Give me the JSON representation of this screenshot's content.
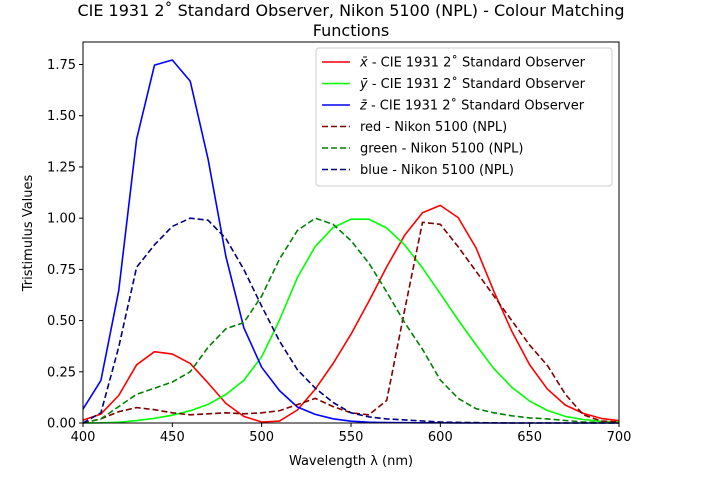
{
  "chart_data": {
    "type": "line",
    "title_line1": "CIE 1931 2$^\\circ$ Standard Observer, Nikon 5100 (NPL) - Colour Matching",
    "title_line1_display": "CIE 1931 2˚ Standard Observer, Nikon 5100 (NPL) - Colour Matching",
    "title_line2": "Functions",
    "xlabel": "Wavelength λ (nm)",
    "ylabel": "Tristimulus Values",
    "xlim": [
      400,
      700
    ],
    "ylim": [
      0,
      1.86
    ],
    "xticks": [
      400,
      450,
      500,
      550,
      600,
      650,
      700
    ],
    "xtick_labels": [
      "400",
      "450",
      "500",
      "550",
      "600",
      "650",
      "700"
    ],
    "yticks": [
      0,
      0.25,
      0.5,
      0.75,
      1.0,
      1.25,
      1.5,
      1.75
    ],
    "ytick_labels": [
      "0.00",
      "0.25",
      "0.50",
      "0.75",
      "1.00",
      "1.25",
      "1.50",
      "1.75"
    ],
    "grid": false,
    "legend_position": "top-right",
    "x": [
      400,
      410,
      420,
      430,
      440,
      450,
      460,
      470,
      480,
      490,
      500,
      510,
      520,
      530,
      540,
      550,
      560,
      570,
      580,
      590,
      600,
      610,
      620,
      630,
      640,
      650,
      660,
      670,
      680,
      690,
      700
    ],
    "series": [
      {
        "name_prefix": "x̄",
        "name_suffix": " - CIE 1931 2˚ Standard Observer",
        "color": "#ff0000",
        "style": "solid",
        "values": [
          0.0143,
          0.0435,
          0.1344,
          0.2839,
          0.3483,
          0.3362,
          0.2908,
          0.1954,
          0.0956,
          0.032,
          0.0049,
          0.0093,
          0.0633,
          0.1655,
          0.2904,
          0.4334,
          0.5945,
          0.7621,
          0.9163,
          1.0263,
          1.0622,
          1.0026,
          0.8544,
          0.6424,
          0.4479,
          0.2835,
          0.1649,
          0.0874,
          0.0468,
          0.0227,
          0.0114
        ]
      },
      {
        "name_prefix": "ȳ",
        "name_suffix": " - CIE 1931 2˚ Standard Observer",
        "color": "#00ff00",
        "style": "solid",
        "values": [
          0.0004,
          0.0012,
          0.004,
          0.0116,
          0.023,
          0.038,
          0.06,
          0.091,
          0.139,
          0.208,
          0.323,
          0.503,
          0.71,
          0.862,
          0.954,
          0.995,
          0.995,
          0.952,
          0.87,
          0.757,
          0.631,
          0.503,
          0.381,
          0.265,
          0.175,
          0.107,
          0.061,
          0.032,
          0.017,
          0.0082,
          0.0041
        ]
      },
      {
        "name_prefix": "z̄",
        "name_suffix": " - CIE 1931 2˚ Standard Observer",
        "color": "#0000ff",
        "style": "solid",
        "values": [
          0.0679,
          0.2074,
          0.6456,
          1.3856,
          1.7471,
          1.7721,
          1.6692,
          1.2876,
          0.813,
          0.4652,
          0.272,
          0.1582,
          0.0782,
          0.0422,
          0.0203,
          0.0087,
          0.0039,
          0.0021,
          0.0017,
          0.0011,
          0.0008,
          0.0003,
          0.0002,
          0.0,
          0.0,
          0.0,
          0.0,
          0.0,
          0.0,
          0.0,
          0.0
        ]
      },
      {
        "name": "red - Nikon 5100 (NPL)",
        "color": "#800000",
        "style": "dashed",
        "values": [
          0.0,
          0.02,
          0.055,
          0.075,
          0.065,
          0.05,
          0.04,
          0.045,
          0.05,
          0.045,
          0.05,
          0.06,
          0.09,
          0.12,
          0.08,
          0.05,
          0.04,
          0.11,
          0.55,
          0.98,
          0.97,
          0.86,
          0.74,
          0.62,
          0.5,
          0.38,
          0.28,
          0.14,
          0.04,
          0.01,
          0.005
        ]
      },
      {
        "name": "green - Nikon 5100 (NPL)",
        "color": "#008000",
        "style": "dashed",
        "values": [
          0.0,
          0.02,
          0.08,
          0.14,
          0.17,
          0.2,
          0.25,
          0.37,
          0.46,
          0.49,
          0.62,
          0.8,
          0.94,
          1.0,
          0.97,
          0.89,
          0.78,
          0.64,
          0.49,
          0.36,
          0.21,
          0.12,
          0.07,
          0.05,
          0.035,
          0.025,
          0.02,
          0.012,
          0.005,
          0.002,
          0.0
        ]
      },
      {
        "name": "blue - Nikon 5100 (NPL)",
        "color": "#000080",
        "style": "dashed",
        "values": [
          0.0,
          0.05,
          0.37,
          0.76,
          0.87,
          0.96,
          1.0,
          0.99,
          0.9,
          0.75,
          0.57,
          0.4,
          0.26,
          0.17,
          0.1,
          0.05,
          0.03,
          0.02,
          0.015,
          0.01,
          0.005,
          0.003,
          0.002,
          0.001,
          0.0,
          0.0,
          0.0,
          0.0,
          0.0,
          0.0,
          0.0
        ]
      }
    ]
  }
}
